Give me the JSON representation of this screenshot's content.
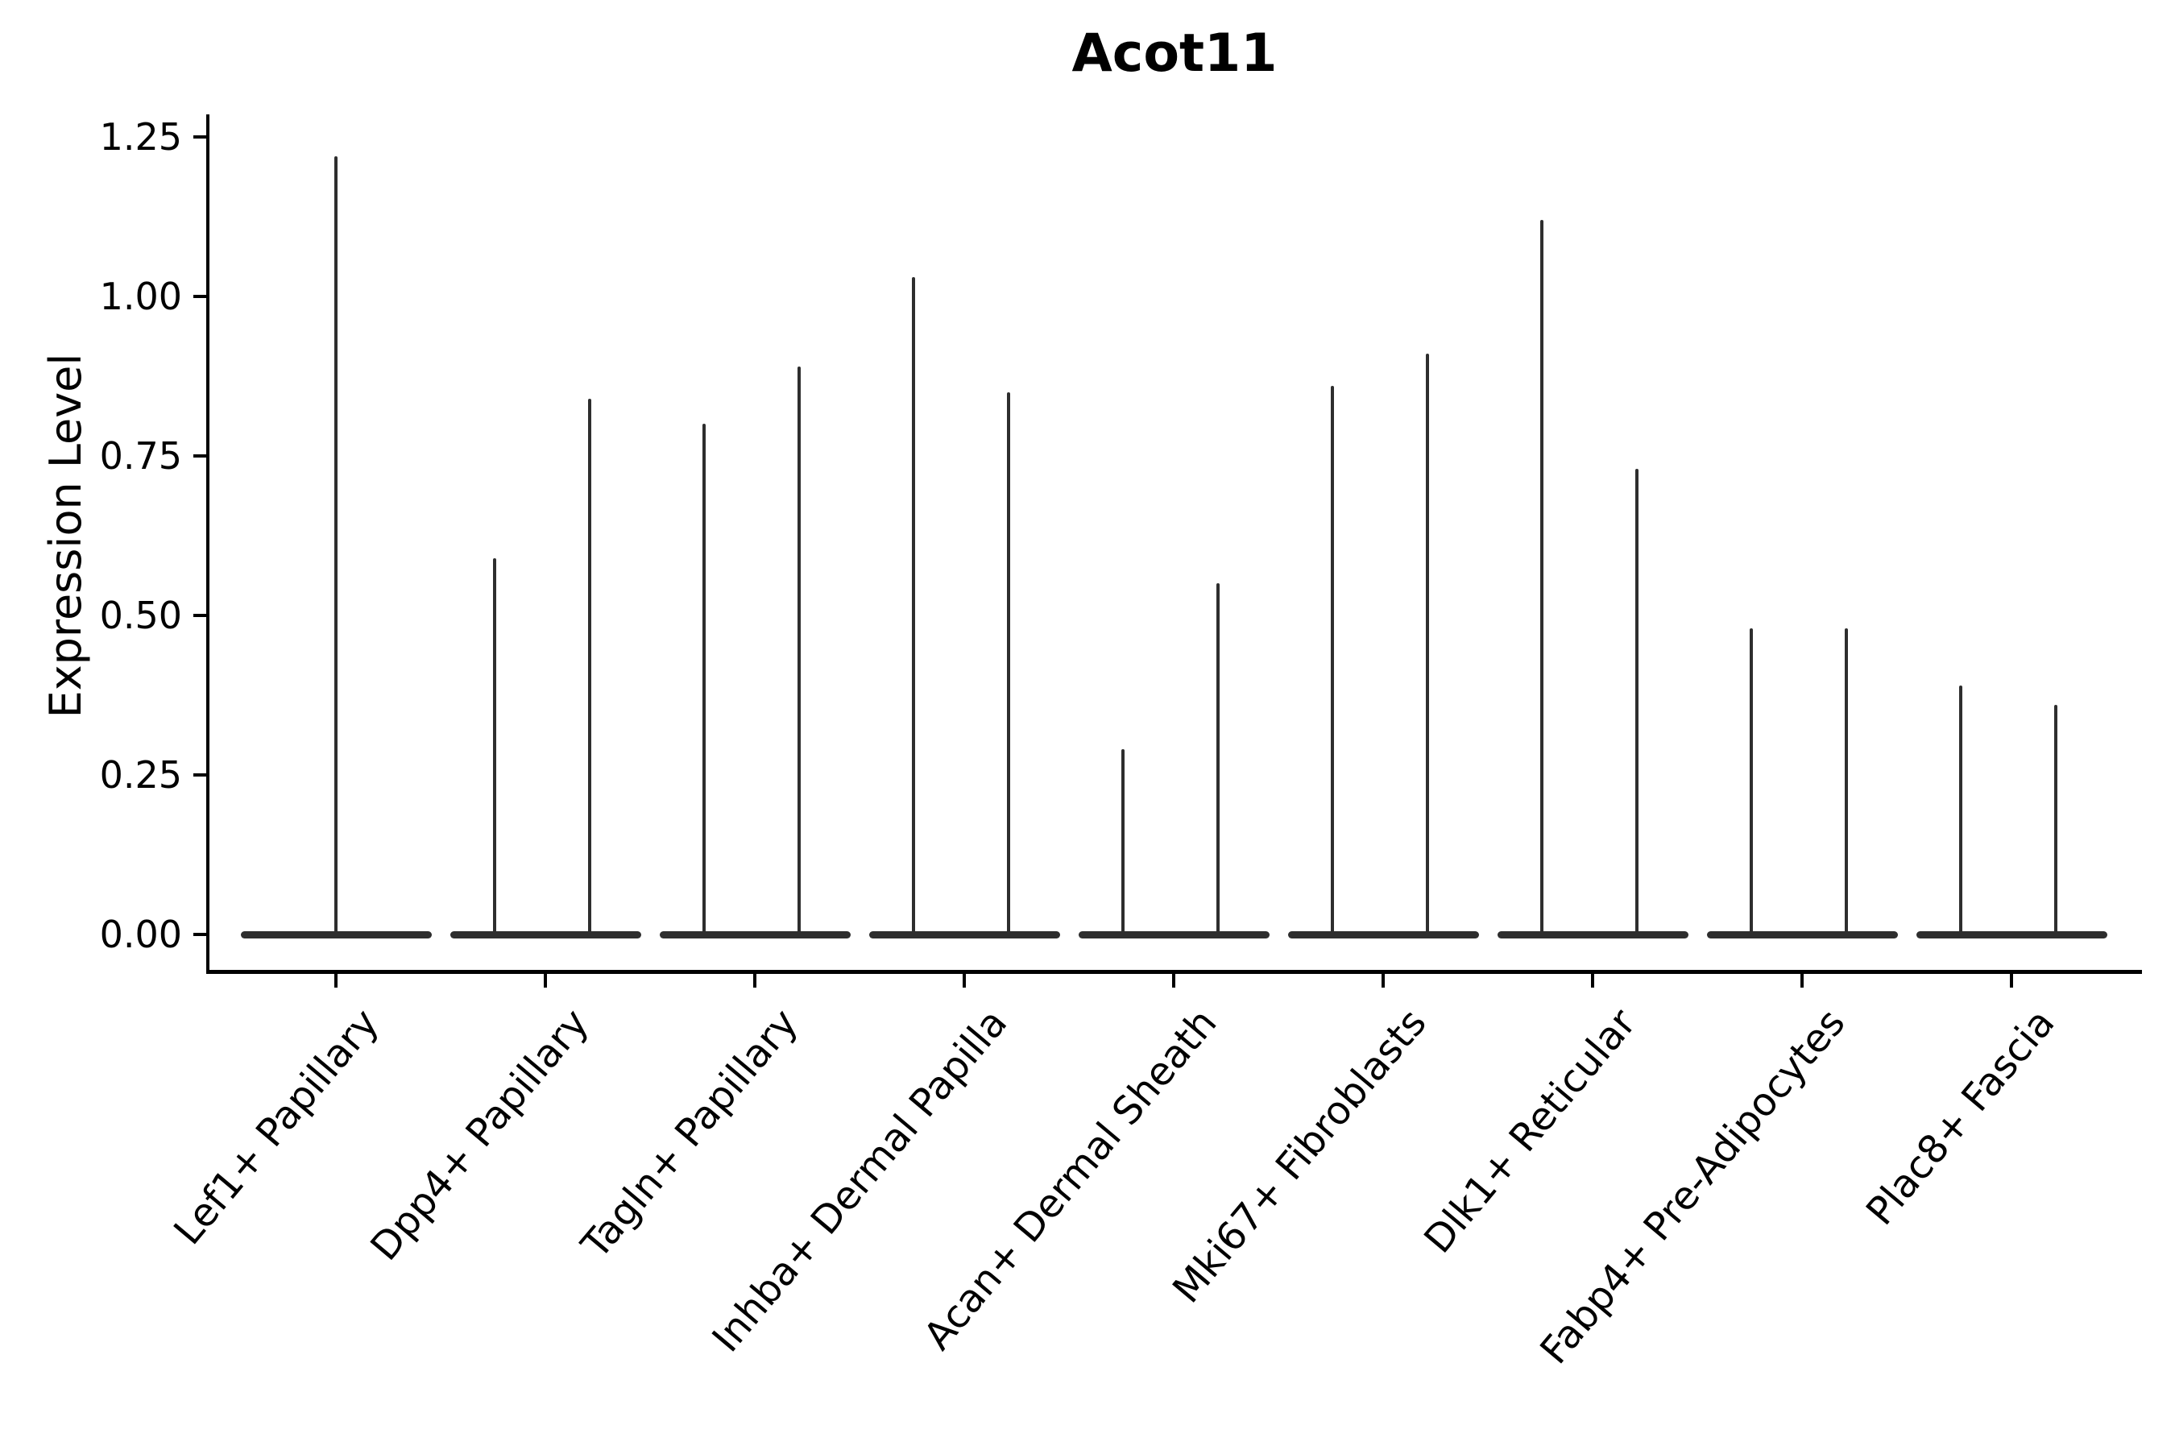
{
  "chart_data": {
    "type": "violin",
    "title": "Acot11",
    "xlabel": "",
    "ylabel": "Expression Level",
    "ylim": [
      0,
      1.25
    ],
    "grid": false,
    "legend": "none",
    "stroke_color": "#2e2e2e",
    "axis_color": "#000000",
    "ytick_labels": [
      "0.00",
      "0.25",
      "0.50",
      "0.75",
      "1.00",
      "1.25"
    ],
    "yticks": [
      0.0,
      0.25,
      0.5,
      0.75,
      1.0,
      1.25
    ],
    "categories": [
      "Lef1+ Papillary",
      "Dpp4+ Papillary",
      "Tagln+ Papillary",
      "Inhba+ Dermal Papilla",
      "Acan+ Dermal Sheath",
      "Mki67+ Fibroblasts",
      "Dlk1+ Reticular",
      "Fabp4+ Pre-Adipocytes",
      "Plac8+ Fascia"
    ],
    "violins": [
      {
        "label": "Lef1+ Papillary",
        "baseline_value": 0,
        "spike_max_values": [
          1.22
        ]
      },
      {
        "label": "Dpp4+ Papillary",
        "baseline_value": 0,
        "spike_max_values": [
          0.59,
          0.84
        ]
      },
      {
        "label": "Tagln+ Papillary",
        "baseline_value": 0,
        "spike_max_values": [
          0.8,
          0.89
        ]
      },
      {
        "label": "Inhba+ Dermal Papilla",
        "baseline_value": 0,
        "spike_max_values": [
          1.03,
          0.85
        ]
      },
      {
        "label": "Acan+ Dermal Sheath",
        "baseline_value": 0,
        "spike_max_values": [
          0.29,
          0.55
        ]
      },
      {
        "label": "Mki67+ Fibroblasts",
        "baseline_value": 0,
        "spike_max_values": [
          0.86,
          0.91
        ]
      },
      {
        "label": "Dlk1+ Reticular",
        "baseline_value": 0,
        "spike_max_values": [
          1.12,
          0.73
        ]
      },
      {
        "label": "Fabp4+ Pre-Adipocytes",
        "baseline_value": 0,
        "spike_max_values": [
          0.48,
          0.48
        ]
      },
      {
        "label": "Plac8+ Fascia",
        "baseline_value": 0,
        "spike_max_values": [
          0.39,
          0.36
        ]
      }
    ]
  }
}
